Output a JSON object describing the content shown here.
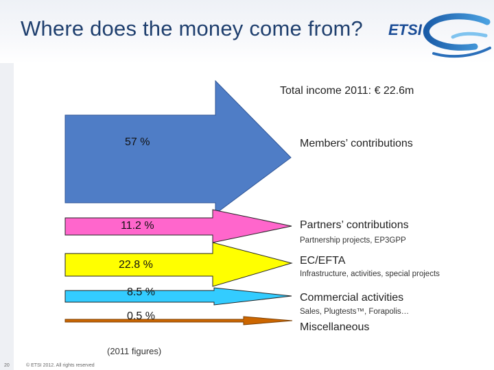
{
  "slide": {
    "title": "Where does the money come from?",
    "total_label": "Total income 2011: € 22.6m",
    "footnote": "(2011 figures)",
    "page_number": "20",
    "copyright": "© ETSI 2012. All rights reserved",
    "logo_text": "ETSI"
  },
  "chart_data": {
    "type": "bar",
    "categories": [
      "Members’ contributions",
      "Partners’ contributions",
      "EC/EFTA",
      "Commercial activities",
      "Miscellaneous"
    ],
    "values": [
      57,
      11.2,
      22.8,
      8.5,
      0.5
    ],
    "value_labels": [
      "57 %",
      "11.2 %",
      "22.8 %",
      "8.5 %",
      "0.5 %"
    ],
    "sublabels": [
      "",
      "Partnership projects, EP3GPP",
      "Infrastructure, activities, special projects",
      "Sales, Plugtests™, Forapolis…",
      ""
    ],
    "colors": [
      "#4f7dc6",
      "#ff66cc",
      "#ffff00",
      "#33ccff",
      "#cc6600"
    ],
    "title": "Total income 2011: € 22.6m"
  }
}
